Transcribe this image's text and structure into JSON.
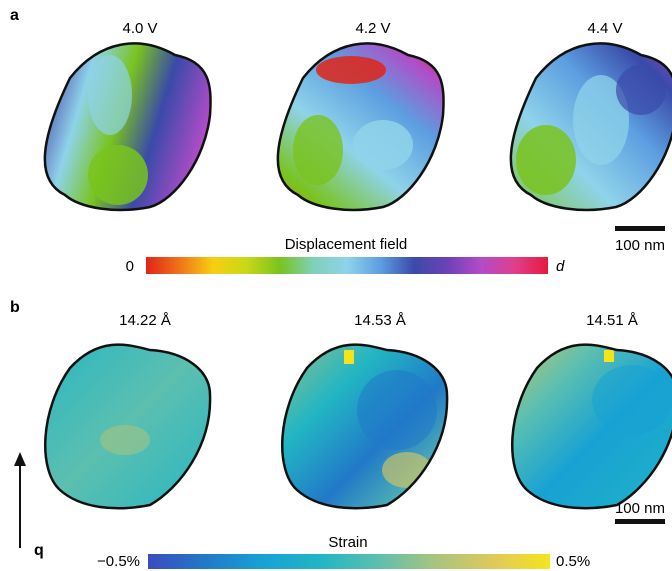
{
  "panel_a": {
    "letter": "a",
    "columns": [
      "4.0 V",
      "4.2 V",
      "4.4 V"
    ],
    "colorbar": {
      "title": "Displacement field",
      "min_label": "0",
      "max_label": "d",
      "colors": [
        "#e02418",
        "#f0731a",
        "#f5cf10",
        "#c9d818",
        "#79c31f",
        "#7fd0b9",
        "#8fd3ea",
        "#5c9ee0",
        "#3a4aa9",
        "#6d41b7",
        "#b24cc7",
        "#df3f8c",
        "#e51b3d"
      ]
    },
    "scalebar_label": "100 nm"
  },
  "panel_b": {
    "letter": "b",
    "columns": [
      "14.22 Å",
      "14.53 Å",
      "14.51 Å"
    ],
    "colorbar": {
      "title": "Strain",
      "min_label": "−0.5%",
      "max_label": "0.5%",
      "colors": [
        "#3b4cc0",
        "#2179c8",
        "#17a2d4",
        "#22b5c4",
        "#5cbfb0",
        "#a8c47e",
        "#dfc95c",
        "#f5e41c"
      ]
    },
    "scalebar_label": "100 nm",
    "axis_label": "q"
  }
}
